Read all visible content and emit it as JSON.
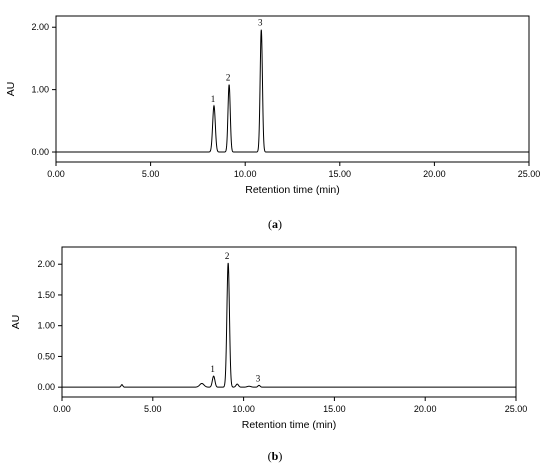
{
  "chart_data": [
    {
      "type": "line",
      "caption_letter": "a",
      "xlabel": "Retention time (min)",
      "ylabel": "AU",
      "xlim": [
        0,
        25
      ],
      "ylim": [
        -0.16,
        2.18
      ],
      "xticks": [
        "0.00",
        "5.00",
        "10.00",
        "15.00",
        "20.00",
        "25.00"
      ],
      "xtick_values": [
        0,
        5,
        10,
        15,
        20,
        25
      ],
      "yticks": [
        "0.00",
        "1.00",
        "2.00"
      ],
      "ytick_values": [
        0,
        1,
        2
      ],
      "peaks": [
        {
          "label": "1",
          "rt": 8.35,
          "height": 0.74,
          "width": 0.07
        },
        {
          "label": "2",
          "rt": 9.15,
          "height": 1.08,
          "width": 0.06
        },
        {
          "label": "3",
          "rt": 10.85,
          "height": 1.96,
          "width": 0.06
        }
      ],
      "minor_peaks": []
    },
    {
      "type": "line",
      "caption_letter": "b",
      "xlabel": "Retention time (min)",
      "ylabel": "AU",
      "xlim": [
        0,
        25
      ],
      "ylim": [
        -0.16,
        2.28
      ],
      "xticks": [
        "0.00",
        "5.00",
        "10.00",
        "15.00",
        "20.00",
        "25.00"
      ],
      "xtick_values": [
        0,
        5,
        10,
        15,
        20,
        25
      ],
      "yticks": [
        "0.00",
        "0.50",
        "1.00",
        "1.50",
        "2.00"
      ],
      "ytick_values": [
        0,
        0.5,
        1,
        1.5,
        2
      ],
      "peaks": [
        {
          "label": "1",
          "rt": 8.35,
          "height": 0.18,
          "width": 0.07
        },
        {
          "label": "2",
          "rt": 9.15,
          "height": 2.02,
          "width": 0.07
        },
        {
          "label": "3",
          "rt": 10.85,
          "height": 0.03,
          "width": 0.06
        }
      ],
      "minor_peaks": [
        {
          "rt": 3.3,
          "height": 0.04,
          "width": 0.05
        },
        {
          "rt": 7.7,
          "height": 0.06,
          "width": 0.12
        },
        {
          "rt": 9.65,
          "height": 0.05,
          "width": 0.07
        },
        {
          "rt": 10.3,
          "height": 0.015,
          "width": 0.1
        }
      ]
    }
  ]
}
